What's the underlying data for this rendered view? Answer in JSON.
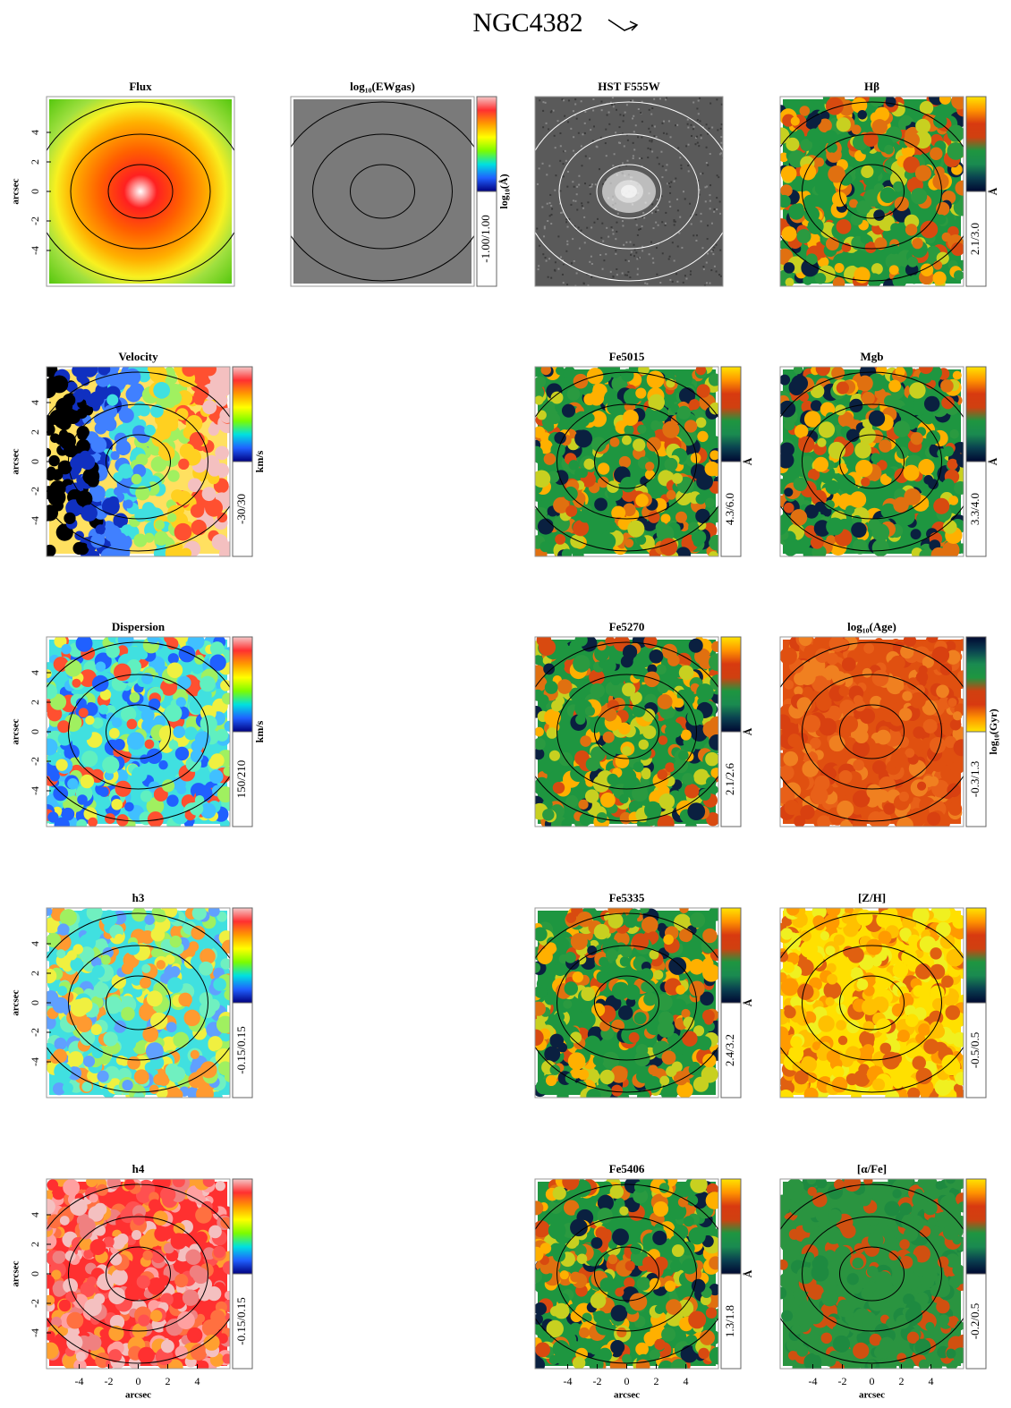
{
  "title": "NGC4382",
  "axis_label": "arcsec",
  "ticks": [
    -4,
    -2,
    0,
    2,
    4
  ],
  "columns": [
    [
      {
        "title": "Flux"
      },
      {
        "title": "Velocity",
        "range": "-30/30",
        "unit": "km/s"
      },
      {
        "title": "Dispersion",
        "range": "150/210",
        "unit": "km/s"
      },
      {
        "title": "h3",
        "range": "-0.15/0.15"
      },
      {
        "title": "h4",
        "range": "-0.15/0.15"
      }
    ],
    [
      {
        "title": "log₁₀(EWgas)",
        "range": "-1.00/1.00",
        "unit": "log₁₀(Å)"
      }
    ],
    [
      {
        "title": "HST F555W"
      },
      {
        "title": "Fe5015",
        "range": "4.3/6.0",
        "unit": "Å"
      },
      {
        "title": "Fe5270",
        "range": "2.1/2.6",
        "unit": "Å"
      },
      {
        "title": "Fe5335",
        "range": "2.4/3.2",
        "unit": "Å"
      },
      {
        "title": "Fe5406",
        "range": "1.3/1.8",
        "unit": "Å"
      }
    ],
    [
      {
        "title": "Hβ",
        "range": "2.1/3.0",
        "unit": "Å"
      },
      {
        "title": "Mgb",
        "range": "3.3/4.0",
        "unit": "Å"
      },
      {
        "title": "log₁₀(Age)",
        "range": "-0.3/1.3",
        "unit": "log₁₀(Gyr)"
      },
      {
        "title": "[Z/H]",
        "range": "-0.5/0.5"
      },
      {
        "title": "[α/Fe]",
        "range": "-0.2/0.5"
      }
    ]
  ]
}
